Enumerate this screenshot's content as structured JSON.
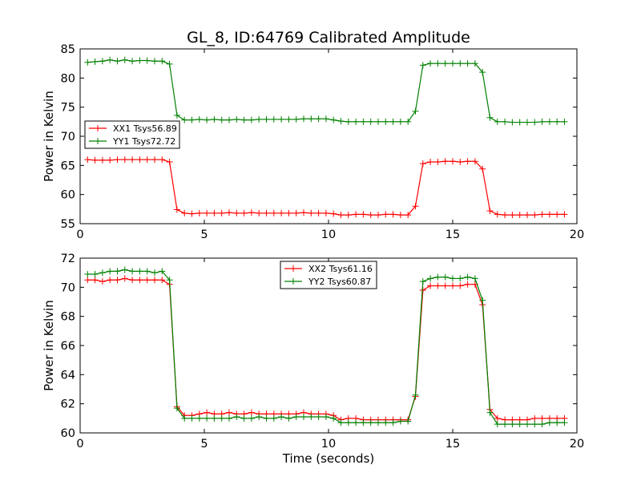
{
  "figure": {
    "title": "GL_8, ID:64769 Calibrated Amplitude"
  },
  "colors": {
    "red": "#ff0000",
    "green": "#008000"
  },
  "chart_data": [
    {
      "type": "line",
      "title": "GL_8, ID:64769 Calibrated Amplitude",
      "xlabel": "",
      "ylabel": "Power in Kelvin",
      "xlim": [
        0,
        20
      ],
      "ylim": [
        55,
        85
      ],
      "xticks": [
        0,
        5,
        10,
        15,
        20
      ],
      "yticks": [
        55,
        60,
        65,
        70,
        75,
        80,
        85
      ],
      "legend_position": "center-left",
      "grid": false,
      "x": [
        0.3,
        0.6,
        0.9,
        1.2,
        1.5,
        1.8,
        2.1,
        2.4,
        2.7,
        3.0,
        3.3,
        3.6,
        3.9,
        4.2,
        4.5,
        4.8,
        5.1,
        5.4,
        5.7,
        6.0,
        6.3,
        6.6,
        6.9,
        7.2,
        7.5,
        7.8,
        8.1,
        8.4,
        8.7,
        9.0,
        9.3,
        9.6,
        9.9,
        10.2,
        10.5,
        10.8,
        11.1,
        11.4,
        11.7,
        12.0,
        12.3,
        12.6,
        12.9,
        13.2,
        13.5,
        13.8,
        14.1,
        14.4,
        14.7,
        15.0,
        15.3,
        15.6,
        15.9,
        16.2,
        16.5,
        16.8,
        17.1,
        17.4,
        17.7,
        18.0,
        18.3,
        18.6,
        18.9,
        19.2,
        19.5
      ],
      "series": [
        {
          "name": "XX1 Tsys56.89",
          "color": "#ff0000",
          "values": [
            66.0,
            65.9,
            65.9,
            65.9,
            66.0,
            66.0,
            66.0,
            66.0,
            66.0,
            66.0,
            66.0,
            65.6,
            57.4,
            56.8,
            56.7,
            56.8,
            56.8,
            56.8,
            56.8,
            56.9,
            56.8,
            56.8,
            56.9,
            56.8,
            56.8,
            56.8,
            56.8,
            56.8,
            56.8,
            56.9,
            56.8,
            56.8,
            56.8,
            56.7,
            56.5,
            56.5,
            56.6,
            56.6,
            56.5,
            56.5,
            56.6,
            56.6,
            56.5,
            56.5,
            58.0,
            65.3,
            65.6,
            65.6,
            65.7,
            65.7,
            65.6,
            65.7,
            65.7,
            64.4,
            57.2,
            56.6,
            56.5,
            56.5,
            56.5,
            56.5,
            56.5,
            56.6,
            56.6,
            56.6,
            56.6
          ]
        },
        {
          "name": "YY1 Tsys72.72",
          "color": "#008000",
          "values": [
            82.7,
            82.8,
            82.9,
            83.1,
            82.9,
            83.1,
            82.9,
            83.0,
            83.0,
            82.9,
            82.9,
            82.4,
            73.6,
            72.8,
            72.8,
            72.9,
            72.8,
            72.9,
            72.8,
            72.8,
            72.9,
            72.8,
            72.8,
            72.9,
            72.9,
            72.9,
            72.9,
            72.9,
            72.9,
            73.0,
            73.0,
            73.0,
            73.0,
            72.8,
            72.6,
            72.5,
            72.5,
            72.5,
            72.5,
            72.5,
            72.5,
            72.5,
            72.5,
            72.5,
            74.3,
            82.2,
            82.5,
            82.5,
            82.5,
            82.5,
            82.5,
            82.5,
            82.5,
            81.0,
            73.2,
            72.5,
            72.5,
            72.4,
            72.4,
            72.4,
            72.4,
            72.5,
            72.5,
            72.5,
            72.5
          ]
        }
      ]
    },
    {
      "type": "line",
      "title": "",
      "xlabel": "Time (seconds)",
      "ylabel": "Power in Kelvin",
      "xlim": [
        0,
        20
      ],
      "ylim": [
        60,
        72
      ],
      "xticks": [
        0,
        5,
        10,
        15,
        20
      ],
      "yticks": [
        60,
        62,
        64,
        66,
        68,
        70,
        72
      ],
      "legend_position": "top-center",
      "grid": false,
      "x": [
        0.3,
        0.6,
        0.9,
        1.2,
        1.5,
        1.8,
        2.1,
        2.4,
        2.7,
        3.0,
        3.3,
        3.6,
        3.9,
        4.2,
        4.5,
        4.8,
        5.1,
        5.4,
        5.7,
        6.0,
        6.3,
        6.6,
        6.9,
        7.2,
        7.5,
        7.8,
        8.1,
        8.4,
        8.7,
        9.0,
        9.3,
        9.6,
        9.9,
        10.2,
        10.5,
        10.8,
        11.1,
        11.4,
        11.7,
        12.0,
        12.3,
        12.6,
        12.9,
        13.2,
        13.5,
        13.8,
        14.1,
        14.4,
        14.7,
        15.0,
        15.3,
        15.6,
        15.9,
        16.2,
        16.5,
        16.8,
        17.1,
        17.4,
        17.7,
        18.0,
        18.3,
        18.6,
        18.9,
        19.2,
        19.5
      ],
      "series": [
        {
          "name": "XX2 Tsys61.16",
          "color": "#ff0000",
          "values": [
            70.5,
            70.5,
            70.4,
            70.5,
            70.5,
            70.6,
            70.5,
            70.5,
            70.5,
            70.5,
            70.5,
            70.2,
            61.8,
            61.2,
            61.2,
            61.3,
            61.4,
            61.3,
            61.3,
            61.4,
            61.3,
            61.3,
            61.4,
            61.3,
            61.3,
            61.3,
            61.3,
            61.3,
            61.3,
            61.4,
            61.3,
            61.3,
            61.3,
            61.2,
            60.9,
            61.0,
            61.0,
            60.9,
            60.9,
            60.9,
            60.9,
            60.9,
            60.9,
            60.9,
            62.5,
            69.8,
            70.1,
            70.1,
            70.1,
            70.1,
            70.1,
            70.2,
            70.2,
            68.8,
            61.6,
            61.0,
            60.9,
            60.9,
            60.9,
            60.9,
            61.0,
            61.0,
            61.0,
            61.0,
            61.0
          ]
        },
        {
          "name": "YY2 Tsys60.87",
          "color": "#008000",
          "values": [
            70.9,
            70.9,
            71.0,
            71.1,
            71.1,
            71.2,
            71.1,
            71.1,
            71.1,
            71.0,
            71.1,
            70.5,
            61.7,
            61.0,
            61.0,
            61.0,
            61.0,
            61.0,
            61.0,
            61.0,
            61.1,
            61.0,
            61.0,
            61.1,
            61.0,
            61.0,
            61.1,
            61.0,
            61.1,
            61.1,
            61.1,
            61.1,
            61.1,
            61.0,
            60.7,
            60.7,
            60.7,
            60.7,
            60.7,
            60.7,
            60.7,
            60.7,
            60.8,
            60.8,
            62.6,
            70.4,
            70.6,
            70.7,
            70.7,
            70.6,
            70.6,
            70.7,
            70.6,
            69.1,
            61.4,
            60.6,
            60.6,
            60.6,
            60.6,
            60.6,
            60.6,
            60.6,
            60.7,
            60.7,
            60.7
          ]
        }
      ]
    }
  ]
}
